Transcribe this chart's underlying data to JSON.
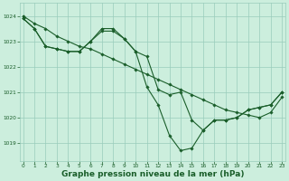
{
  "background_color": "#cceedd",
  "grid_color": "#99ccbb",
  "line_color": "#1a5e2a",
  "marker_color": "#1a5e2a",
  "xlabel": "Graphe pression niveau de la mer (hPa)",
  "xlabel_fontsize": 6.5,
  "ylim": [
    1018.3,
    1024.5
  ],
  "xlim": [
    -0.3,
    23.3
  ],
  "yticks": [
    1019,
    1020,
    1021,
    1022,
    1023,
    1024
  ],
  "xticks": [
    0,
    1,
    2,
    3,
    4,
    5,
    6,
    7,
    8,
    9,
    10,
    11,
    12,
    13,
    14,
    15,
    16,
    17,
    18,
    19,
    20,
    21,
    22,
    23
  ],
  "series": [
    {
      "x": [
        0,
        1,
        2,
        3,
        4,
        5,
        6,
        7,
        8,
        9,
        10,
        11,
        12,
        13,
        14,
        15,
        16,
        17,
        18,
        19,
        20,
        21,
        22,
        23
      ],
      "y": [
        1024.0,
        1023.7,
        1023.5,
        1023.2,
        1023.0,
        1022.8,
        1022.7,
        1022.5,
        1022.3,
        1022.1,
        1021.9,
        1021.7,
        1021.5,
        1021.3,
        1021.1,
        1020.9,
        1020.7,
        1020.5,
        1020.3,
        1020.2,
        1020.1,
        1020.0,
        1020.2,
        1020.8
      ]
    },
    {
      "x": [
        0,
        1,
        2,
        3,
        4,
        5,
        6,
        7,
        8,
        9,
        10,
        11,
        12,
        13,
        14,
        15,
        16,
        17,
        18,
        19,
        20,
        21,
        22,
        23
      ],
      "y": [
        1023.9,
        1023.5,
        1022.8,
        1022.7,
        1022.6,
        1022.6,
        1023.0,
        1023.4,
        1023.4,
        1023.1,
        1022.6,
        1022.4,
        1021.1,
        1020.9,
        1021.0,
        1019.9,
        1019.5,
        1019.9,
        1019.9,
        1020.0,
        1020.3,
        1020.4,
        1020.5,
        1021.0
      ]
    },
    {
      "x": [
        0,
        1,
        2,
        3,
        4,
        5,
        6,
        7,
        8,
        9,
        10,
        11,
        12,
        13,
        14,
        15,
        16,
        17,
        18,
        19,
        20,
        21,
        22,
        23
      ],
      "y": [
        1023.9,
        1023.5,
        1022.8,
        1022.7,
        1022.6,
        1022.6,
        1023.0,
        1023.5,
        1023.5,
        1023.1,
        1022.6,
        1021.2,
        1020.5,
        1019.3,
        1018.7,
        1018.8,
        1019.5,
        1019.9,
        1019.9,
        1020.0,
        1020.3,
        1020.4,
        1020.5,
        1021.0
      ]
    }
  ]
}
